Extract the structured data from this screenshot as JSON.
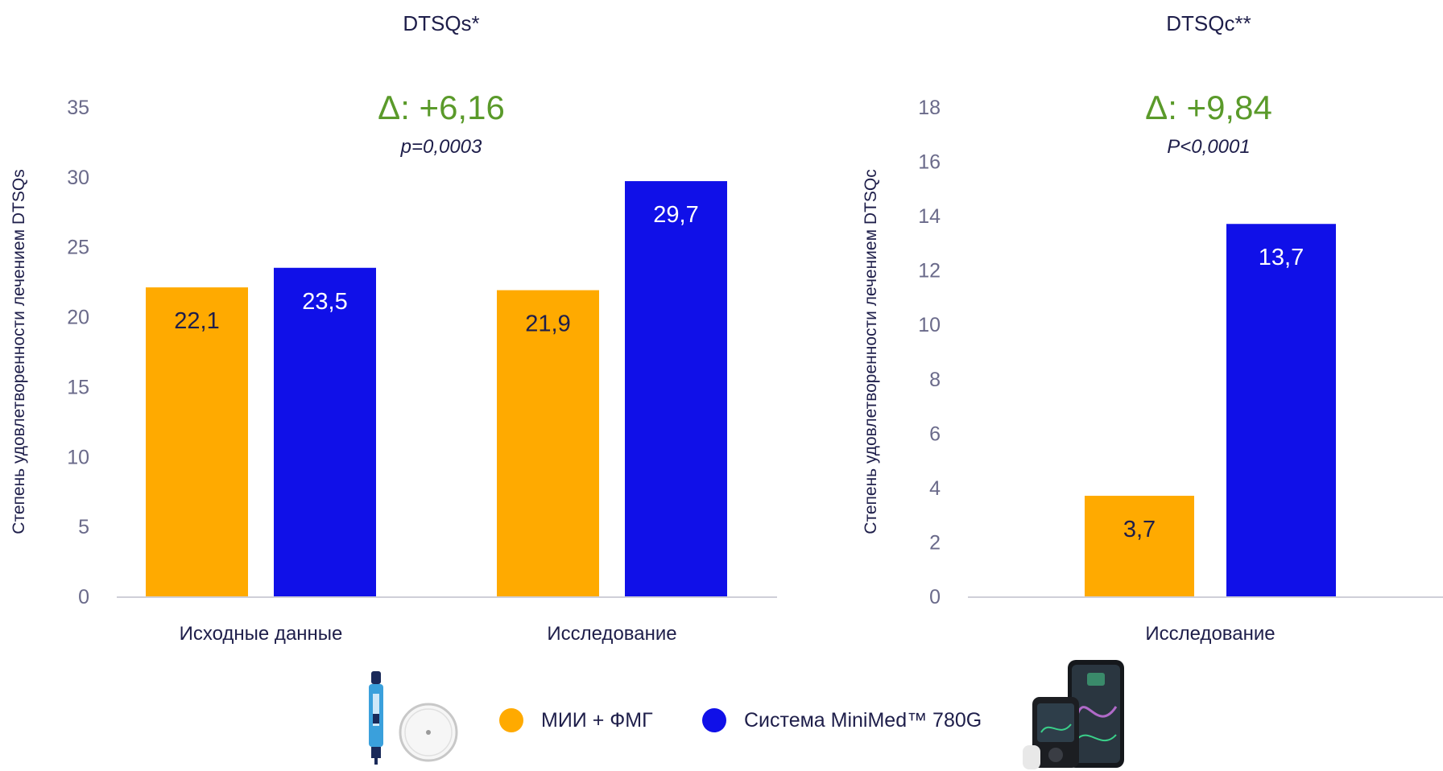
{
  "colors": {
    "mii": "#FFAA00",
    "minimed": "#1010E8",
    "delta": "#5a9a2a",
    "axis_text": "#6a6a8a",
    "text": "#1e1e4a"
  },
  "legend": {
    "items": [
      {
        "label": "МИИ + ФМГ",
        "color": "#FFAA00"
      },
      {
        "label": "Система MiniMed™ 780G",
        "color": "#1010E8"
      }
    ],
    "icons": [
      "insulin-pen-icon",
      "glucose-sensor-icon",
      "minimed-780g-pump-and-phone-icon"
    ]
  },
  "chart_data": [
    {
      "type": "bar",
      "title": "DTSQs*",
      "ylabel": "Степень удовлетворенности лечением DTSQs",
      "ylim": [
        0,
        35
      ],
      "yticks": [
        0,
        5,
        10,
        15,
        20,
        25,
        30,
        35
      ],
      "categories": [
        "Исходные данные",
        "Исследование"
      ],
      "series": [
        {
          "name": "МИИ + ФМГ",
          "values": [
            22.1,
            21.9
          ],
          "labels": [
            "22,1",
            "21,9"
          ]
        },
        {
          "name": "Система MiniMed™ 780G",
          "values": [
            23.5,
            29.7
          ],
          "labels": [
            "23,5",
            "29,7"
          ]
        }
      ],
      "annotation": {
        "delta": "Δ: +6,16",
        "p": "p=0,0003"
      }
    },
    {
      "type": "bar",
      "title": "DTSQc**",
      "ylabel": "Степень удовлетворенности лечением DTSQc",
      "ylim": [
        0,
        18
      ],
      "yticks": [
        0,
        2,
        4,
        6,
        8,
        10,
        12,
        14,
        16,
        18
      ],
      "categories": [
        "Исследование"
      ],
      "series": [
        {
          "name": "МИИ + ФМГ",
          "values": [
            3.7
          ],
          "labels": [
            "3,7"
          ]
        },
        {
          "name": "Система MiniMed™ 780G",
          "values": [
            13.7
          ],
          "labels": [
            "13,7"
          ]
        }
      ],
      "annotation": {
        "delta": "Δ: +9,84",
        "p": "P<0,0001"
      }
    }
  ]
}
